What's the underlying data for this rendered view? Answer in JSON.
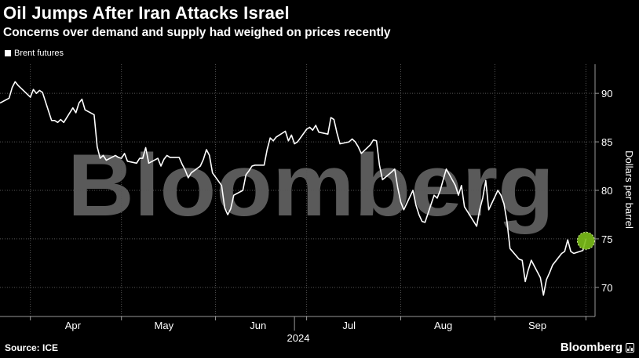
{
  "header": {
    "title": "Oil Jumps After Iran Attacks Israel",
    "subtitle": "Concerns over demand and supply had weighed on prices recently"
  },
  "footer": {
    "source": "Source: ICE",
    "brand": "Bloomberg"
  },
  "watermark": "Bloomberg",
  "colors": {
    "background": "#000000",
    "line": "#ffffff",
    "highlight": "#7cbf1a",
    "grid": "#555555",
    "watermark": "#5a5a5a"
  },
  "chart_data": {
    "type": "line",
    "title": "Oil Jumps After Iran Attacks Israel",
    "subtitle": "Concerns over demand and supply had weighed on prices recently",
    "ylabel": "Dollars per barrel",
    "xlabel": "2024",
    "ylim": [
      67,
      93
    ],
    "xlim": [
      "2024-03-22",
      "2024-10-04"
    ],
    "y_ticks": [
      70,
      75,
      80,
      85,
      90
    ],
    "x_ticks": [
      {
        "label": "Apr",
        "date": "2024-04-15"
      },
      {
        "label": "May",
        "date": "2024-05-15"
      },
      {
        "label": "Jun",
        "date": "2024-06-15"
      },
      {
        "label": "Jul",
        "date": "2024-07-15"
      },
      {
        "label": "Aug",
        "date": "2024-08-15"
      },
      {
        "label": "Sep",
        "date": "2024-09-15"
      }
    ],
    "grid": true,
    "legend": "top-left",
    "series": [
      {
        "name": "Brent futures",
        "x": [
          "2024-03-22",
          "2024-03-25",
          "2024-03-26",
          "2024-03-27",
          "2024-03-28",
          "2024-04-01",
          "2024-04-02",
          "2024-04-03",
          "2024-04-04",
          "2024-04-05",
          "2024-04-08",
          "2024-04-09",
          "2024-04-10",
          "2024-04-11",
          "2024-04-12",
          "2024-04-15",
          "2024-04-16",
          "2024-04-17",
          "2024-04-18",
          "2024-04-19",
          "2024-04-22",
          "2024-04-23",
          "2024-04-24",
          "2024-04-25",
          "2024-04-26",
          "2024-04-29",
          "2024-04-30",
          "2024-05-01",
          "2024-05-02",
          "2024-05-03",
          "2024-05-06",
          "2024-05-07",
          "2024-05-08",
          "2024-05-09",
          "2024-05-10",
          "2024-05-13",
          "2024-05-14",
          "2024-05-15",
          "2024-05-16",
          "2024-05-17",
          "2024-05-20",
          "2024-05-21",
          "2024-05-22",
          "2024-05-23",
          "2024-05-24",
          "2024-05-27",
          "2024-05-28",
          "2024-05-29",
          "2024-05-30",
          "2024-05-31",
          "2024-06-03",
          "2024-06-04",
          "2024-06-05",
          "2024-06-06",
          "2024-06-07",
          "2024-06-10",
          "2024-06-11",
          "2024-06-12",
          "2024-06-13",
          "2024-06-14",
          "2024-06-17",
          "2024-06-18",
          "2024-06-19",
          "2024-06-20",
          "2024-06-21",
          "2024-06-24",
          "2024-06-25",
          "2024-06-26",
          "2024-06-27",
          "2024-06-28",
          "2024-07-01",
          "2024-07-02",
          "2024-07-03",
          "2024-07-04",
          "2024-07-05",
          "2024-07-08",
          "2024-07-09",
          "2024-07-10",
          "2024-07-11",
          "2024-07-12",
          "2024-07-15",
          "2024-07-16",
          "2024-07-17",
          "2024-07-18",
          "2024-07-19",
          "2024-07-22",
          "2024-07-23",
          "2024-07-24",
          "2024-07-25",
          "2024-07-26",
          "2024-07-29",
          "2024-07-30",
          "2024-07-31",
          "2024-08-01",
          "2024-08-02",
          "2024-08-05",
          "2024-08-06",
          "2024-08-07",
          "2024-08-08",
          "2024-08-09",
          "2024-08-12",
          "2024-08-13",
          "2024-08-14",
          "2024-08-15",
          "2024-08-16",
          "2024-08-19",
          "2024-08-20",
          "2024-08-21",
          "2024-08-22",
          "2024-08-23",
          "2024-08-26",
          "2024-08-27",
          "2024-08-28",
          "2024-08-29",
          "2024-08-30",
          "2024-09-02",
          "2024-09-03",
          "2024-09-04",
          "2024-09-05",
          "2024-09-06",
          "2024-09-09",
          "2024-09-10",
          "2024-09-11",
          "2024-09-12",
          "2024-09-13",
          "2024-09-16",
          "2024-09-17",
          "2024-09-18",
          "2024-09-19",
          "2024-09-20",
          "2024-09-23",
          "2024-09-24",
          "2024-09-25",
          "2024-09-26",
          "2024-09-27",
          "2024-09-30",
          "2024-10-01"
        ],
        "values": [
          89.0,
          89.5,
          90.6,
          91.2,
          90.8,
          89.6,
          90.4,
          90.0,
          90.3,
          90.1,
          87.2,
          87.2,
          87.0,
          87.3,
          87.0,
          88.5,
          88.0,
          89.0,
          89.4,
          88.3,
          87.8,
          84.5,
          83.3,
          83.6,
          83.1,
          83.6,
          83.4,
          83.3,
          83.8,
          83.0,
          82.8,
          83.3,
          83.3,
          84.4,
          82.8,
          83.3,
          82.5,
          83.2,
          83.6,
          83.4,
          83.4,
          82.7,
          82.1,
          81.3,
          81.8,
          82.5,
          83.2,
          84.2,
          83.6,
          81.8,
          80.5,
          78.2,
          77.5,
          78.1,
          79.5,
          80.0,
          81.6,
          82.0,
          82.5,
          82.6,
          82.6,
          84.2,
          85.4,
          85.1,
          85.5,
          86.1,
          85.1,
          85.7,
          84.8,
          85.0,
          86.3,
          86.5,
          86.2,
          86.7,
          86.0,
          85.8,
          87.5,
          87.3,
          85.9,
          84.8,
          85.0,
          85.3,
          85.0,
          84.5,
          83.8,
          84.7,
          85.2,
          85.1,
          82.6,
          81.1,
          81.9,
          82.2,
          80.3,
          78.8,
          78.0,
          80.0,
          78.5,
          77.5,
          76.8,
          76.7,
          79.5,
          79.2,
          80.0,
          81.1,
          82.2,
          80.5,
          79.5,
          80.5,
          78.3,
          77.8,
          76.3,
          78.0,
          79.2,
          81.0,
          78.0,
          80.0,
          79.5,
          78.6,
          76.8,
          74.0,
          72.9,
          72.8,
          70.6,
          71.8,
          72.8,
          71.0,
          69.2,
          70.8,
          71.5,
          72.3,
          73.5,
          73.7,
          74.9,
          73.7,
          73.5,
          73.8,
          75.0
        ]
      }
    ],
    "highlight": {
      "x": "2024-10-01",
      "y": 74.8
    }
  }
}
